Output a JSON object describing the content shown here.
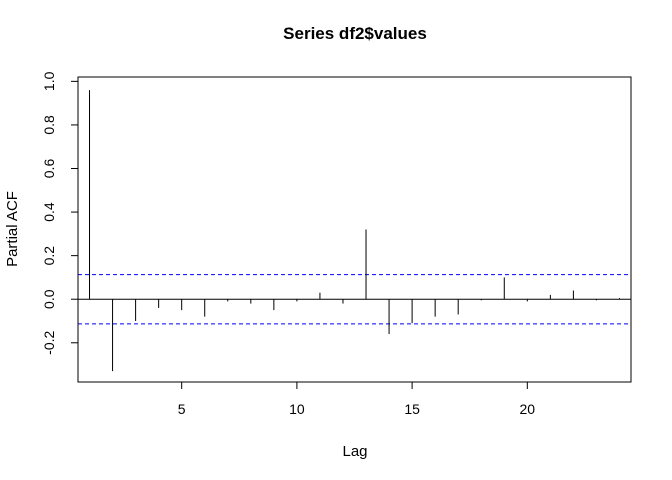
{
  "chart_data": {
    "type": "bar",
    "subtype": "pacf",
    "title": "Series  df2$values",
    "xlabel": "Lag",
    "ylabel": "Partial ACF",
    "xlim": [
      0.5,
      24.5
    ],
    "ylim": [
      -0.38,
      1.02
    ],
    "x_ticks": [
      5,
      10,
      15,
      20
    ],
    "x_tick_labels": [
      "5",
      "10",
      "15",
      "20"
    ],
    "y_ticks": [
      -0.2,
      0.0,
      0.2,
      0.4,
      0.6,
      0.8,
      1.0
    ],
    "y_tick_labels": [
      "-0.2",
      "0.0",
      "0.2",
      "0.4",
      "0.6",
      "0.8",
      "1.0"
    ],
    "confidence_band": 0.113,
    "confidence_color": "#0000ff",
    "line_color": "#000000",
    "lags": [
      1,
      2,
      3,
      4,
      5,
      6,
      7,
      8,
      9,
      10,
      11,
      12,
      13,
      14,
      15,
      16,
      17,
      18,
      19,
      20,
      21,
      22,
      23,
      24
    ],
    "values": [
      0.96,
      -0.33,
      -0.1,
      -0.04,
      -0.05,
      -0.08,
      -0.01,
      -0.02,
      -0.05,
      -0.01,
      0.03,
      -0.02,
      0.32,
      -0.16,
      -0.11,
      -0.08,
      -0.07,
      -0.005,
      0.1,
      -0.01,
      0.02,
      0.04,
      -0.005,
      0.005
    ]
  }
}
